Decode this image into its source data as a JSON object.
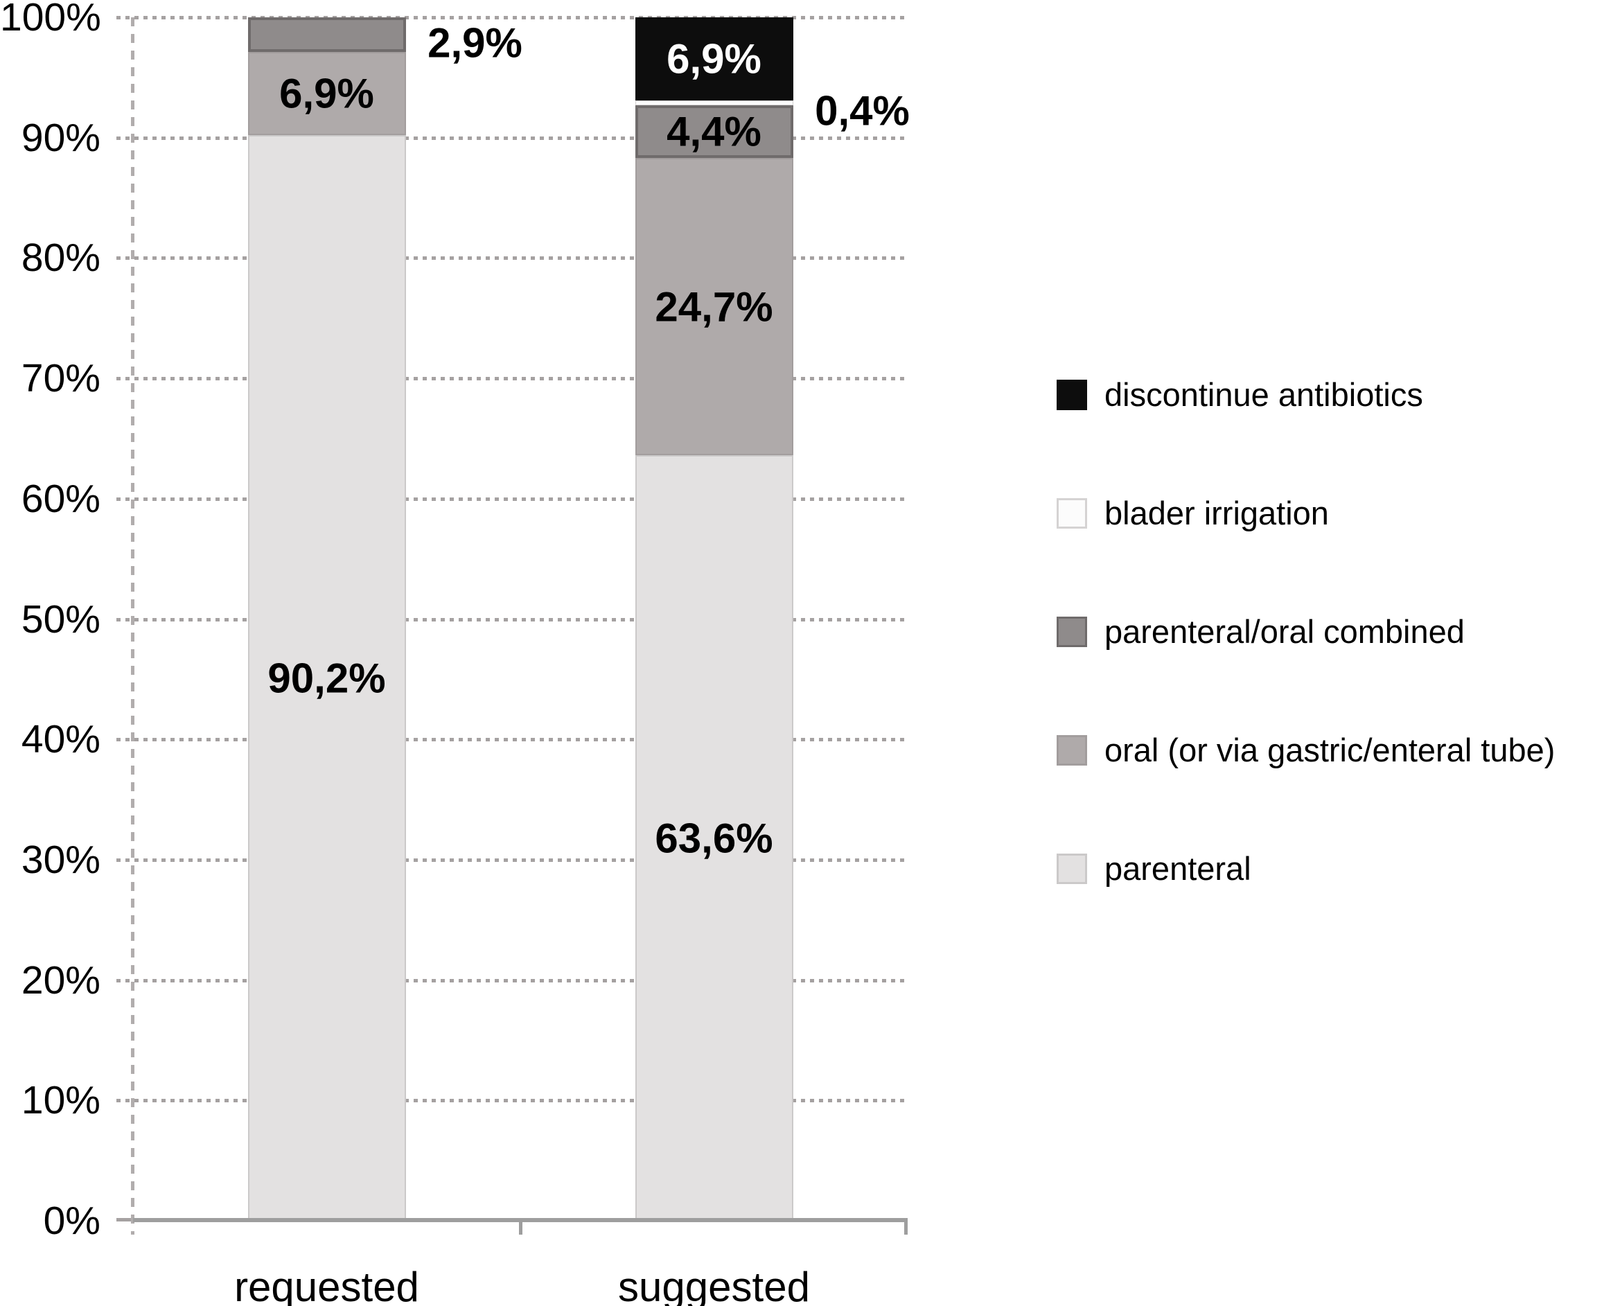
{
  "chart_data": {
    "type": "bar",
    "subtype": "stacked-100-percent",
    "title": "",
    "categories": [
      "requested",
      "suggested"
    ],
    "series": [
      {
        "name": "parenteral",
        "color": "#e3e1e1",
        "border_color": "#cbc9c9",
        "border_width": 2,
        "values": [
          90.2,
          63.6
        ],
        "labels": [
          "90,2%",
          "63,6%"
        ],
        "label_placement": [
          "inside",
          "inside"
        ],
        "label_colors": [
          "#000000",
          "#000000"
        ]
      },
      {
        "name": "oral (or via gastric/enteral tube)",
        "color": "#afaaaa",
        "border_color": "#a29d9d",
        "border_width": 2,
        "values": [
          6.9,
          24.7
        ],
        "labels": [
          "6,9%",
          "24,7%"
        ],
        "label_placement": [
          "inside",
          "inside"
        ],
        "label_colors": [
          "#000000",
          "#000000"
        ]
      },
      {
        "name": "parenteral/oral combined",
        "color": "#8f8b8b",
        "border_color": "#6f6b6b",
        "border_width": 4,
        "values": [
          2.9,
          4.4
        ],
        "labels": [
          "2,9%",
          "4,4%"
        ],
        "label_placement": [
          "outside",
          "inside"
        ],
        "label_colors": [
          "#000000",
          "#000000"
        ]
      },
      {
        "name": "blader irrigation",
        "color": "#fcfcfc",
        "border_color": "#d5d3d3",
        "border_width": 1,
        "values": [
          0,
          0.4
        ],
        "labels": [
          null,
          "0,4%"
        ],
        "label_placement": [
          null,
          "outside"
        ],
        "label_colors": [
          null,
          "#000000"
        ]
      },
      {
        "name": "discontinue antibiotics",
        "color": "#0d0d0d",
        "border_color": "#0d0d0d",
        "border_width": 0,
        "values": [
          0,
          6.9
        ],
        "labels": [
          null,
          "6,9%"
        ],
        "label_placement": [
          null,
          "inside"
        ],
        "label_colors": [
          null,
          "#ffffff"
        ]
      }
    ],
    "y_axis": {
      "min": 0,
      "max": 100,
      "tick_labels": [
        "0%",
        "10%",
        "20%",
        "30%",
        "40%",
        "50%",
        "60%",
        "70%",
        "80%",
        "90%",
        "100%"
      ],
      "gridlines": "dotted"
    },
    "legend": {
      "position": "right",
      "items": [
        "discontinue antibiotics",
        "blader irrigation",
        "parenteral/oral combined",
        "oral (or via gastric/enteral tube)",
        "parenteral"
      ]
    }
  }
}
